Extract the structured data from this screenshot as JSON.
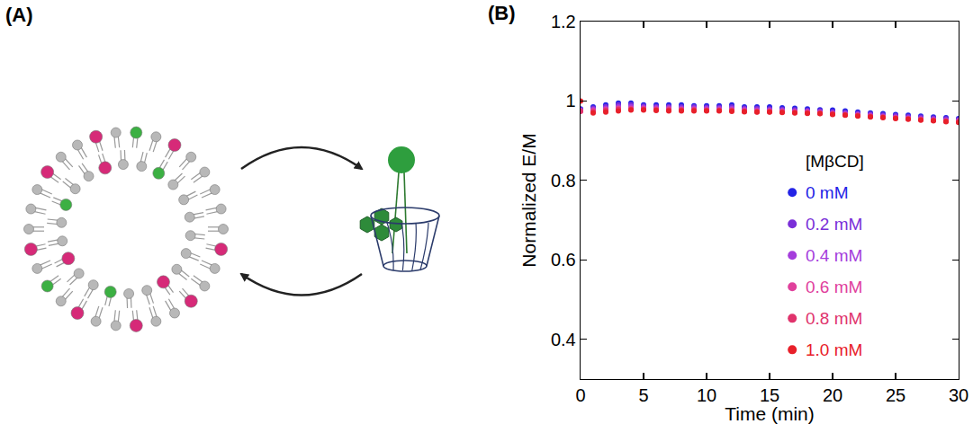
{
  "panel_labels": [
    "(A)",
    "(B)"
  ],
  "chart_data": {
    "type": "scatter",
    "x_label": "Time (min)",
    "y_label": "Normalized E/M",
    "legend_title": "[MβCD]",
    "legend": "lower right",
    "marker": "circle",
    "grid": false,
    "xlim": [
      0,
      30
    ],
    "xticks": [
      0,
      5,
      10,
      15,
      20,
      25,
      30
    ],
    "ylim": [
      0.3,
      1.2
    ],
    "yticks": [
      0.4,
      0.6,
      0.8,
      1,
      1.2
    ],
    "x": [
      0,
      1,
      2,
      3,
      4,
      5,
      6,
      7,
      8,
      9,
      10,
      11,
      12,
      13,
      14,
      15,
      16,
      17,
      18,
      19,
      20,
      21,
      22,
      23,
      24,
      25,
      26,
      27,
      28,
      29,
      30
    ],
    "series": [
      {
        "name": "0 mM",
        "color": "#2323e6",
        "values": [
          0.98,
          0.985,
          0.99,
          0.995,
          0.995,
          0.99,
          0.99,
          0.99,
          0.99,
          0.988,
          0.988,
          0.988,
          0.99,
          0.985,
          0.985,
          0.985,
          0.983,
          0.982,
          0.98,
          0.978,
          0.977,
          0.975,
          0.972,
          0.97,
          0.968,
          0.966,
          0.964,
          0.962,
          0.96,
          0.958,
          0.956
        ]
      },
      {
        "name": "0.2 mM",
        "color": "#7a2fd8",
        "values": [
          0.978,
          0.982,
          0.986,
          0.99,
          0.99,
          0.987,
          0.986,
          0.986,
          0.985,
          0.985,
          0.984,
          0.984,
          0.985,
          0.982,
          0.981,
          0.98,
          0.979,
          0.978,
          0.976,
          0.975,
          0.973,
          0.971,
          0.969,
          0.967,
          0.965,
          0.963,
          0.961,
          0.959,
          0.957,
          0.955,
          0.953
        ]
      },
      {
        "name": "0.4 mM",
        "color": "#a53ddc",
        "values": [
          0.976,
          0.979,
          0.982,
          0.985,
          0.986,
          0.984,
          0.983,
          0.983,
          0.982,
          0.982,
          0.981,
          0.981,
          0.981,
          0.979,
          0.978,
          0.977,
          0.976,
          0.975,
          0.974,
          0.972,
          0.97,
          0.968,
          0.966,
          0.964,
          0.962,
          0.96,
          0.958,
          0.956,
          0.954,
          0.952,
          0.951
        ]
      },
      {
        "name": "0.6 mM",
        "color": "#e0409c",
        "values": [
          0.975,
          0.976,
          0.979,
          0.982,
          0.982,
          0.981,
          0.98,
          0.98,
          0.979,
          0.979,
          0.978,
          0.978,
          0.978,
          0.976,
          0.975,
          0.975,
          0.974,
          0.973,
          0.972,
          0.97,
          0.968,
          0.966,
          0.964,
          0.962,
          0.96,
          0.958,
          0.956,
          0.954,
          0.952,
          0.95,
          0.949
        ]
      },
      {
        "name": "0.8 mM",
        "color": "#e0336c",
        "values": [
          0.974,
          0.973,
          0.976,
          0.979,
          0.979,
          0.979,
          0.978,
          0.977,
          0.977,
          0.977,
          0.976,
          0.976,
          0.976,
          0.974,
          0.973,
          0.973,
          0.972,
          0.971,
          0.97,
          0.969,
          0.967,
          0.965,
          0.963,
          0.961,
          0.959,
          0.957,
          0.955,
          0.953,
          0.951,
          0.949,
          0.947
        ]
      },
      {
        "name": "1.0 mM",
        "color": "#e8202a",
        "values": [
          1.0,
          0.97,
          0.972,
          0.975,
          0.977,
          0.977,
          0.976,
          0.975,
          0.975,
          0.975,
          0.975,
          0.975,
          0.974,
          0.973,
          0.972,
          0.972,
          0.971,
          0.97,
          0.969,
          0.968,
          0.966,
          0.964,
          0.962,
          0.96,
          0.958,
          0.956,
          0.954,
          0.952,
          0.95,
          0.948,
          0.946
        ]
      }
    ]
  }
}
